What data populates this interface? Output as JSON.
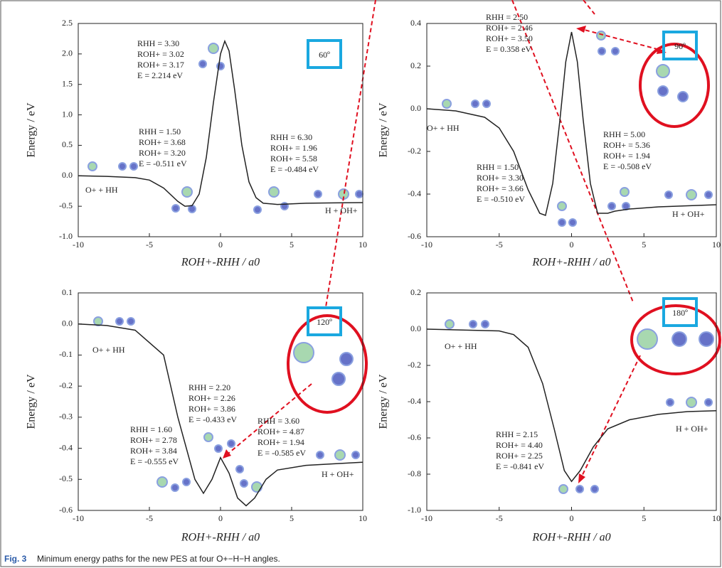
{
  "chart_data": [
    {
      "type": "line",
      "angle": "60º",
      "xlabel": "ROH+-RHH / a0",
      "ylabel": "Energy / eV",
      "xlim": [
        -10,
        10
      ],
      "xticks": [
        -10,
        -5,
        0,
        5,
        10
      ],
      "ylim": [
        -1,
        2.5
      ],
      "yticks": [
        {
          "value": -1,
          "label": "-1.0"
        },
        -0.5,
        {
          "value": 0,
          "label": "0.0"
        },
        0.5,
        {
          "value": 1,
          "label": "1.0"
        },
        1.5,
        {
          "value": 2,
          "label": "2.0"
        },
        2.5
      ],
      "series": [
        {
          "color": "#222222",
          "x": [
            -10,
            -8,
            -6,
            -5,
            -4,
            -3,
            -2.5,
            -2,
            -1.5,
            -1,
            -0.5,
            0,
            0.3,
            0.6,
            1,
            1.5,
            2,
            2.5,
            3,
            4,
            5,
            6,
            8,
            10
          ],
          "values": [
            0,
            -0.01,
            -0.03,
            -0.07,
            -0.2,
            -0.42,
            -0.5,
            -0.49,
            -0.3,
            0.3,
            1.2,
            2.0,
            2.21,
            2.05,
            1.4,
            0.5,
            -0.1,
            -0.36,
            -0.45,
            -0.47,
            -0.46,
            -0.45,
            -0.445,
            -0.44
          ]
        }
      ],
      "labels": [
        "O+ + HH",
        "H + OH+"
      ],
      "annotations": [
        [
          "RHH = 3.30",
          "ROH+ = 3.02",
          "ROH+ = 3.17",
          "E = 2.214 eV"
        ],
        [
          "RHH = 1.50",
          "ROH+ = 3.68",
          "ROH+ = 3.20",
          "E = -0.511 eV"
        ],
        [
          "RHH = 6.30",
          "ROH+ = 1.96",
          "ROH+ = 5.58",
          "E = -0.484 eV"
        ]
      ]
    },
    {
      "type": "line",
      "angle": "90º",
      "xlabel": "ROH+-RHH / a0",
      "ylabel": "Energy / eV",
      "xlim": [
        -10,
        10
      ],
      "xticks": [
        -10,
        -5,
        0,
        5,
        10
      ],
      "ylim": [
        -0.6,
        0.4
      ],
      "yticks": [
        -0.6,
        -0.4,
        -0.2,
        {
          "value": 0,
          "label": "0.0"
        },
        0.2,
        0.4
      ],
      "series": [
        {
          "color": "#222222",
          "x": [
            -10,
            -8,
            -6,
            -5,
            -4,
            -3,
            -2.2,
            -1.8,
            -1.3,
            -0.8,
            -0.4,
            0,
            0.4,
            0.8,
            1.3,
            1.8,
            2.5,
            3,
            4,
            6,
            8,
            10
          ],
          "values": [
            0,
            -0.01,
            -0.04,
            -0.09,
            -0.2,
            -0.38,
            -0.49,
            -0.5,
            -0.35,
            -0.05,
            0.22,
            0.36,
            0.22,
            -0.05,
            -0.35,
            -0.49,
            -0.49,
            -0.48,
            -0.47,
            -0.46,
            -0.455,
            -0.45
          ]
        }
      ],
      "labels": [
        "O+ + HH",
        "H + OH+"
      ],
      "annotations": [
        [
          "RHH = 2.50",
          "ROH+ = 2.46",
          "ROH+ = 3.50",
          "E = 0.358 eV"
        ],
        [
          "RHH = 1.50",
          "ROH+ = 3.30",
          "ROH+ = 3.66",
          "E = -0.510 eV"
        ],
        [
          "RHH = 5.00",
          "ROH+ = 5.36",
          "ROH+ = 1.94",
          "E = -0.508 eV"
        ]
      ]
    },
    {
      "type": "line",
      "angle": "120º",
      "xlabel": "ROH+-RHH / a0",
      "ylabel": "Energy / eV",
      "xlim": [
        -10,
        10
      ],
      "xticks": [
        -10,
        -5,
        0,
        5,
        10
      ],
      "ylim": [
        -0.6,
        0.1
      ],
      "yticks": [
        -0.6,
        -0.5,
        -0.4,
        -0.3,
        -0.2,
        -0.1,
        {
          "value": 0,
          "label": "0.0"
        },
        0.1
      ],
      "series": [
        {
          "color": "#222222",
          "x": [
            -10,
            -8,
            -6,
            -4,
            -3,
            -1.8,
            -1.2,
            -0.6,
            0,
            0.6,
            1.2,
            1.8,
            2.4,
            3.2,
            4,
            6,
            8,
            10
          ],
          "values": [
            0,
            -0.005,
            -0.02,
            -0.1,
            -0.3,
            -0.5,
            -0.545,
            -0.5,
            -0.43,
            -0.48,
            -0.56,
            -0.585,
            -0.56,
            -0.5,
            -0.47,
            -0.455,
            -0.45,
            -0.445
          ]
        }
      ],
      "labels": [
        "O+ + HH",
        "H + OH+"
      ],
      "annotations": [
        [
          "RHH = 2.20",
          "ROH+ = 2.26",
          "ROH+ = 3.86",
          "E = -0.433 eV"
        ],
        [
          "RHH = 1.60",
          "ROH+ = 2.78",
          "ROH+ = 3.84",
          "E = -0.555 eV"
        ],
        [
          "RHH = 3.60",
          "ROH+ = 4.87",
          "ROH+ = 1.94",
          "E = -0.585 eV"
        ]
      ]
    },
    {
      "type": "line",
      "angle": "180º",
      "xlabel": "ROH+-RHH / a0",
      "ylabel": "Energy / eV",
      "xlim": [
        -10,
        10
      ],
      "xticks": [
        -10,
        -5,
        0,
        5,
        10
      ],
      "ylim": [
        -1,
        0.2
      ],
      "yticks": [
        {
          "value": -1,
          "label": "-1.0"
        },
        -0.8,
        -0.6,
        -0.4,
        -0.2,
        {
          "value": 0,
          "label": "0.0"
        },
        0.2
      ],
      "series": [
        {
          "color": "#222222",
          "x": [
            -10,
            -5,
            -4,
            -3,
            -2,
            -1.2,
            -0.5,
            0,
            0.6,
            1.5,
            2.5,
            4,
            6,
            8,
            10
          ],
          "values": [
            0,
            -0.01,
            -0.03,
            -0.1,
            -0.3,
            -0.55,
            -0.78,
            -0.84,
            -0.78,
            -0.65,
            -0.55,
            -0.5,
            -0.47,
            -0.455,
            -0.45
          ]
        }
      ],
      "labels": [
        "O+ + HH",
        "H + OH+"
      ],
      "annotations": [
        [
          "RHH = 2.15",
          "ROH+ = 4.40",
          "ROH+ = 2.25",
          "E = -0.841 eV"
        ]
      ]
    }
  ],
  "caption": {
    "label": "Fig. 3",
    "text": "Minimum energy paths for the new PES at four O+−H−H angles."
  }
}
